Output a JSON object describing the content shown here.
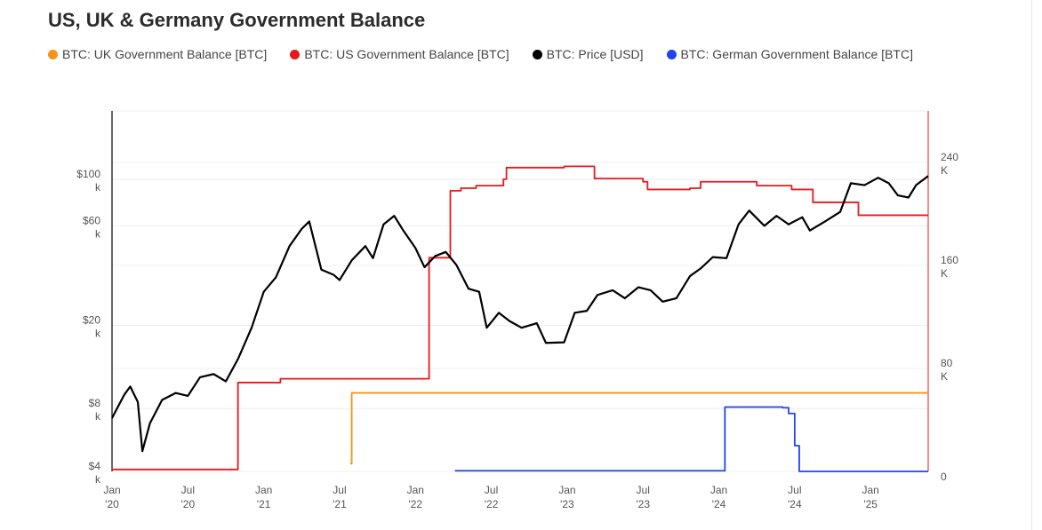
{
  "title": "US, UK & Germany Government Balance",
  "legend": [
    {
      "label": "BTC: UK Government Balance [BTC]",
      "color": "#f7931a"
    },
    {
      "label": "BTC: US Government Balance [BTC]",
      "color": "#e8191c"
    },
    {
      "label": "BTC: Price [USD]",
      "color": "#000000"
    },
    {
      "label": "BTC: German Government Balance [BTC]",
      "color": "#1e44f0"
    }
  ],
  "chart_data": {
    "type": "line",
    "title": "US, UK & Germany Government Balance",
    "x_unit": "decimal year",
    "xlim": [
      2020.0,
      2025.38
    ],
    "x_ticks": [
      {
        "t": 2020.0,
        "l1": "Jan",
        "l2": "'20"
      },
      {
        "t": 2020.5,
        "l1": "Jul",
        "l2": "'20"
      },
      {
        "t": 2021.0,
        "l1": "Jan",
        "l2": "'21"
      },
      {
        "t": 2021.5,
        "l1": "Jul",
        "l2": "'21"
      },
      {
        "t": 2022.0,
        "l1": "Jan",
        "l2": "'22"
      },
      {
        "t": 2022.5,
        "l1": "Jul",
        "l2": "'22"
      },
      {
        "t": 2023.0,
        "l1": "Jan",
        "l2": "'23"
      },
      {
        "t": 2023.5,
        "l1": "Jul",
        "l2": "'23"
      },
      {
        "t": 2024.0,
        "l1": "Jan",
        "l2": "'24"
      },
      {
        "t": 2024.5,
        "l1": "Jul",
        "l2": "'24"
      },
      {
        "t": 2025.0,
        "l1": "Jan",
        "l2": "'25"
      }
    ],
    "y_left": {
      "label": "Price [USD]",
      "scale": "log",
      "ylim": [
        4000,
        213000
      ],
      "ticks": [
        {
          "v": 4000,
          "l1": "$4",
          "l2": "k"
        },
        {
          "v": 8000,
          "l1": "$8",
          "l2": "k"
        },
        {
          "v": 20000,
          "l1": "$20",
          "l2": "k"
        },
        {
          "v": 60000,
          "l1": "$60",
          "l2": "k"
        },
        {
          "v": 100000,
          "l1": "$100",
          "l2": "k"
        }
      ]
    },
    "y_right": {
      "label": "Balance [BTC]",
      "scale": "linear",
      "ylim": [
        0,
        280000
      ],
      "ticks": [
        {
          "v": 0,
          "l1": "0",
          "l2": ""
        },
        {
          "v": 80000,
          "l1": "80",
          "l2": "K"
        },
        {
          "v": 160000,
          "l1": "160",
          "l2": "K"
        },
        {
          "v": 240000,
          "l1": "240",
          "l2": "K"
        }
      ]
    },
    "series": [
      {
        "name": "BTC: US Government Balance [BTC]",
        "axis": "right",
        "step": true,
        "color": "#e8191c",
        "points": [
          [
            2020.0,
            1500
          ],
          [
            2020.83,
            69000
          ],
          [
            2021.11,
            72000
          ],
          [
            2022.09,
            166000
          ],
          [
            2022.23,
            218000
          ],
          [
            2022.3,
            220000
          ],
          [
            2022.4,
            222000
          ],
          [
            2022.58,
            227000
          ],
          [
            2022.6,
            236000
          ],
          [
            2022.98,
            237000
          ],
          [
            2023.18,
            227500
          ],
          [
            2023.5,
            225000
          ],
          [
            2023.53,
            219000
          ],
          [
            2023.81,
            220000
          ],
          [
            2023.88,
            225000
          ],
          [
            2024.25,
            222000
          ],
          [
            2024.48,
            219000
          ],
          [
            2024.62,
            209000
          ],
          [
            2024.92,
            199000
          ],
          [
            2025.38,
            199000
          ]
        ]
      },
      {
        "name": "BTC: UK Government Balance [BTC]",
        "axis": "right",
        "step": true,
        "color": "#f7931a",
        "points": [
          [
            2021.57,
            6000
          ],
          [
            2021.58,
            61000
          ],
          [
            2025.38,
            61000
          ]
        ]
      },
      {
        "name": "BTC: German Government Balance [BTC]",
        "axis": "right",
        "step": true,
        "color": "#1e44f0",
        "points": [
          [
            2022.26,
            500
          ],
          [
            2024.04,
            50000
          ],
          [
            2024.42,
            49500
          ],
          [
            2024.46,
            45000
          ],
          [
            2024.5,
            20000
          ],
          [
            2024.53,
            0
          ],
          [
            2025.38,
            0
          ]
        ]
      },
      {
        "name": "BTC: Price [USD]",
        "axis": "left",
        "step": false,
        "color": "#000000",
        "points": [
          [
            2020.0,
            7200
          ],
          [
            2020.08,
            9300
          ],
          [
            2020.12,
            10200
          ],
          [
            2020.17,
            8600
          ],
          [
            2020.2,
            5000
          ],
          [
            2020.25,
            6800
          ],
          [
            2020.33,
            8800
          ],
          [
            2020.42,
            9500
          ],
          [
            2020.5,
            9200
          ],
          [
            2020.58,
            11300
          ],
          [
            2020.67,
            11700
          ],
          [
            2020.75,
            10800
          ],
          [
            2020.83,
            13800
          ],
          [
            2020.92,
            19500
          ],
          [
            2021.0,
            29000
          ],
          [
            2021.08,
            34000
          ],
          [
            2021.17,
            48000
          ],
          [
            2021.25,
            58000
          ],
          [
            2021.3,
            63000
          ],
          [
            2021.38,
            37000
          ],
          [
            2021.46,
            35000
          ],
          [
            2021.5,
            33000
          ],
          [
            2021.58,
            41000
          ],
          [
            2021.67,
            48000
          ],
          [
            2021.72,
            42000
          ],
          [
            2021.79,
            61000
          ],
          [
            2021.86,
            67000
          ],
          [
            2021.92,
            57000
          ],
          [
            2022.0,
            47000
          ],
          [
            2022.06,
            38000
          ],
          [
            2022.13,
            43000
          ],
          [
            2022.2,
            45000
          ],
          [
            2022.27,
            39000
          ],
          [
            2022.35,
            30000
          ],
          [
            2022.42,
            29000
          ],
          [
            2022.47,
            19500
          ],
          [
            2022.55,
            23000
          ],
          [
            2022.62,
            21000
          ],
          [
            2022.7,
            19500
          ],
          [
            2022.8,
            20500
          ],
          [
            2022.86,
            16500
          ],
          [
            2022.98,
            16600
          ],
          [
            2023.05,
            23000
          ],
          [
            2023.13,
            23500
          ],
          [
            2023.2,
            28000
          ],
          [
            2023.3,
            29500
          ],
          [
            2023.38,
            27000
          ],
          [
            2023.47,
            30500
          ],
          [
            2023.55,
            29500
          ],
          [
            2023.63,
            26000
          ],
          [
            2023.72,
            27000
          ],
          [
            2023.81,
            34500
          ],
          [
            2023.88,
            37500
          ],
          [
            2023.96,
            42500
          ],
          [
            2024.05,
            42000
          ],
          [
            2024.13,
            61000
          ],
          [
            2024.2,
            71000
          ],
          [
            2024.3,
            60000
          ],
          [
            2024.38,
            67000
          ],
          [
            2024.46,
            61000
          ],
          [
            2024.55,
            66000
          ],
          [
            2024.6,
            57000
          ],
          [
            2024.7,
            63000
          ],
          [
            2024.8,
            70000
          ],
          [
            2024.87,
            96000
          ],
          [
            2024.96,
            94000
          ],
          [
            2025.05,
            102000
          ],
          [
            2025.12,
            96000
          ],
          [
            2025.18,
            84000
          ],
          [
            2025.25,
            82000
          ],
          [
            2025.3,
            94000
          ],
          [
            2025.38,
            104000
          ]
        ]
      }
    ]
  }
}
